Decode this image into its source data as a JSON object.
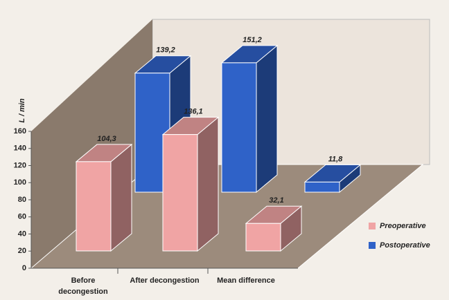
{
  "chart_data": {
    "type": "bar3d",
    "categories": [
      "Before decongestion",
      "After decongestion",
      "Mean difference"
    ],
    "series": [
      {
        "name": "Preoperative",
        "color": "#f0a4a4",
        "values": [
          104.3,
          136.1,
          32.1
        ],
        "value_labels": [
          "104,3",
          "136,1",
          "32,1"
        ]
      },
      {
        "name": "Postoperative",
        "color": "#2f62c8",
        "values": [
          139.2,
          151.2,
          11.8
        ],
        "value_labels": [
          "139,2",
          "151,2",
          "11,8"
        ]
      }
    ],
    "y_label": "L / min",
    "ylim": [
      0,
      160
    ],
    "yticks": [
      0,
      20,
      40,
      60,
      80,
      100,
      120,
      140,
      160
    ],
    "legend": "right"
  }
}
